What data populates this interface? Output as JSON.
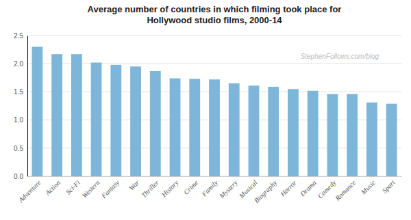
{
  "chart_data": {
    "type": "bar",
    "title": "Average number of countries in which filming took place for\nHollywood studio films, 2000-14",
    "categories": [
      "Adventure",
      "Action",
      "Sci-Fi",
      "Western",
      "Fantasy",
      "War",
      "Thriller",
      "History",
      "Crime",
      "Family",
      "Mystery",
      "Musical",
      "Biography",
      "Horror",
      "Drama",
      "Comedy",
      "Romance",
      "Music",
      "Sport"
    ],
    "values": [
      2.3,
      2.17,
      2.17,
      2.02,
      1.98,
      1.95,
      1.87,
      1.74,
      1.73,
      1.72,
      1.65,
      1.61,
      1.59,
      1.55,
      1.52,
      1.46,
      1.46,
      1.31,
      1.29
    ],
    "color": "#7EB6D9",
    "ylim": [
      0,
      2.5
    ],
    "yticks": [
      {
        "value": 0,
        "label": "0.0"
      },
      0.5,
      {
        "value": 1,
        "label": "1.0"
      },
      1.5,
      {
        "value": 2,
        "label": "2.0"
      },
      2.5
    ],
    "grid": true,
    "annotations": [
      "StephenFollows.com/blog"
    ]
  }
}
